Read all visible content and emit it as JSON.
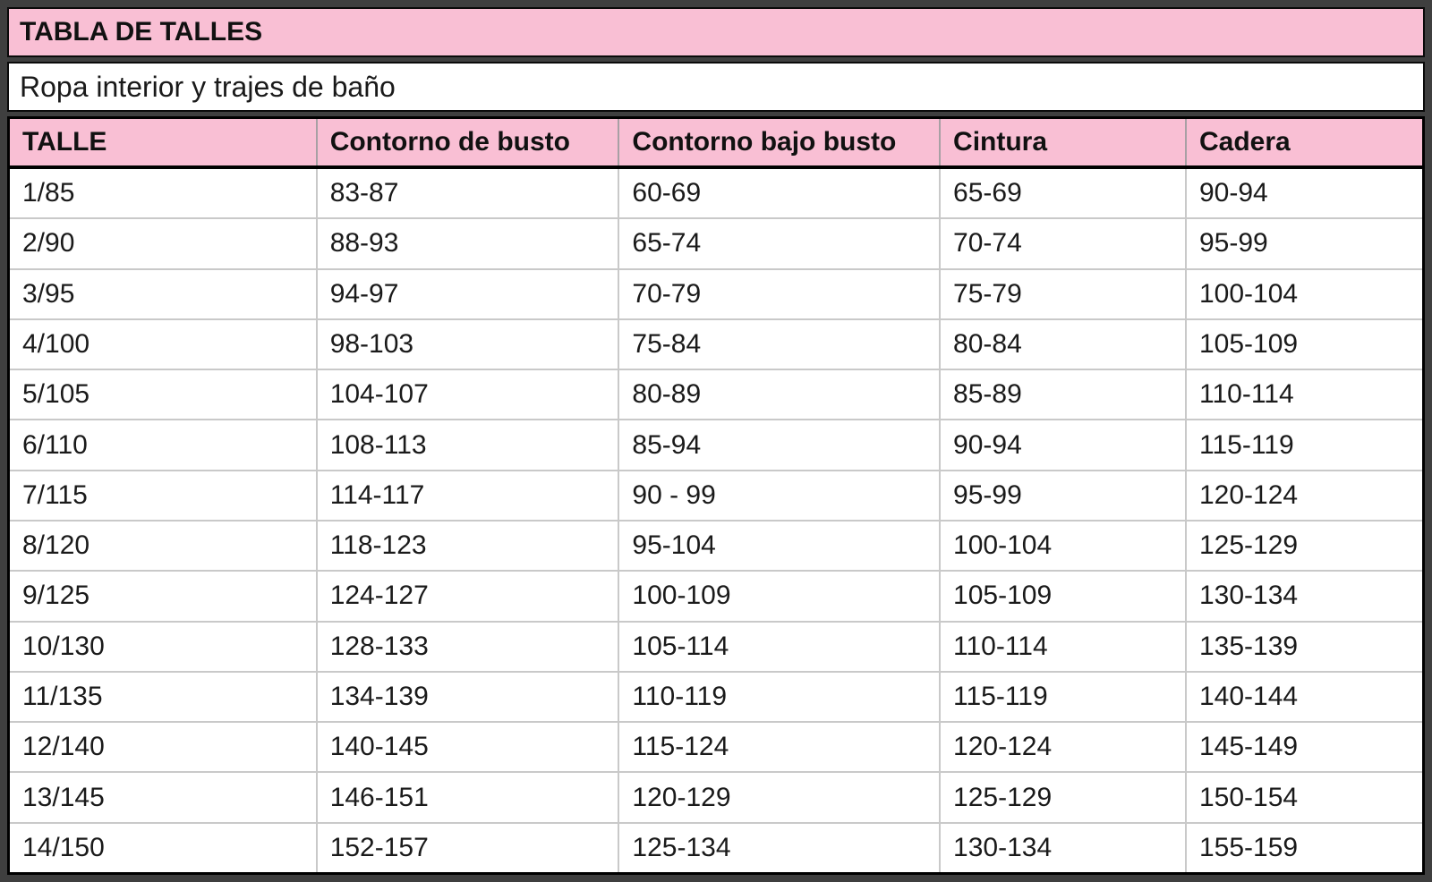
{
  "title": "TABLA DE TALLES",
  "subtitle": "Ropa interior y trajes de baño",
  "columns": [
    "TALLE",
    "Contorno de busto",
    "Contorno bajo busto",
    "Cintura",
    "Cadera"
  ],
  "column_keys": [
    "talle",
    "contorno-de-busto",
    "contorno-bajo-busto",
    "cintura",
    "cadera"
  ],
  "rows": [
    [
      "1/85",
      "83-87",
      "60-69",
      "65-69",
      "90-94"
    ],
    [
      "2/90",
      "88-93",
      "65-74",
      "70-74",
      "95-99"
    ],
    [
      "3/95",
      "94-97",
      "70-79",
      "75-79",
      "100-104"
    ],
    [
      "4/100",
      "98-103",
      "75-84",
      "80-84",
      "105-109"
    ],
    [
      "5/105",
      "104-107",
      "80-89",
      "85-89",
      "110-114"
    ],
    [
      "6/110",
      "108-113",
      "85-94",
      "90-94",
      "115-119"
    ],
    [
      "7/115",
      "114-117",
      "90 - 99",
      "95-99",
      "120-124"
    ],
    [
      "8/120",
      "118-123",
      "95-104",
      "100-104",
      "125-129"
    ],
    [
      "9/125",
      "124-127",
      "100-109",
      "105-109",
      "130-134"
    ],
    [
      "10/130",
      "128-133",
      "105-114",
      "110-114",
      "135-139"
    ],
    [
      "11/135",
      "134-139",
      "110-119",
      "115-119",
      "140-144"
    ],
    [
      "12/140",
      "140-145",
      "115-124",
      "120-124",
      "145-149"
    ],
    [
      "13/145",
      "146-151",
      "120-129",
      "125-129",
      "150-154"
    ],
    [
      "14/150",
      "152-157",
      "125-134",
      "130-134",
      "155-159"
    ]
  ],
  "colors": {
    "header_pink": "#F9BFD4",
    "frame_gray": "#3F3F3F",
    "section_border": "#000000",
    "grid_line": "#C9C9C9",
    "text": "#1a1a1a"
  }
}
